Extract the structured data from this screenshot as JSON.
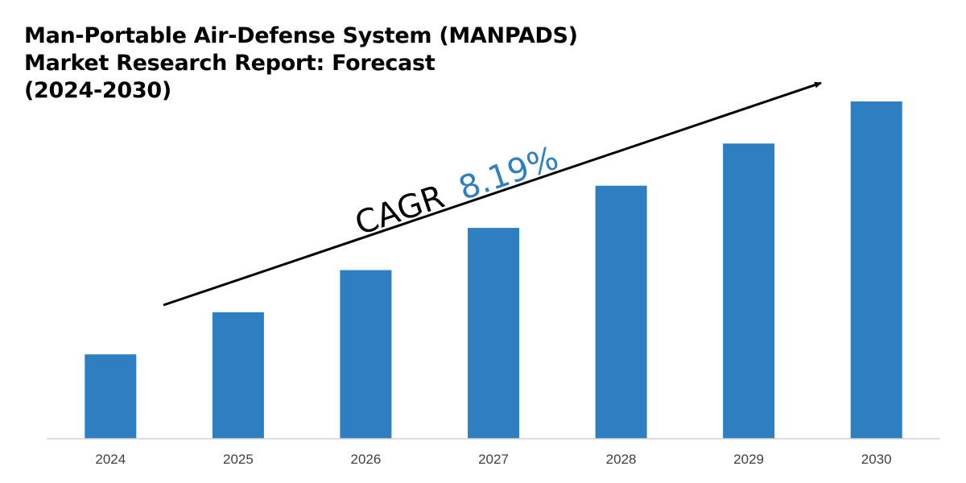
{
  "chart_data": {
    "type": "bar",
    "title_lines": [
      "Man-Portable Air-Defense System (MANPADS)",
      "Market Research Report: Forecast",
      "(2024-2030)"
    ],
    "categories": [
      "2024",
      "2025",
      "2026",
      "2027",
      "2028",
      "2029",
      "2030"
    ],
    "values": [
      1.0,
      1.5,
      2.0,
      2.5,
      3.0,
      3.5,
      4.0
    ],
    "ylim": [
      0,
      4.2
    ],
    "xlabel": "",
    "ylabel": "",
    "grid": false,
    "annotation": {
      "prefix": "CAGR",
      "value": "8.19%"
    }
  },
  "colors": {
    "bar": "#2e7fc2",
    "cagr_value": "#2e7fc2",
    "text": "#000000",
    "axis": "#d0d0d0"
  }
}
